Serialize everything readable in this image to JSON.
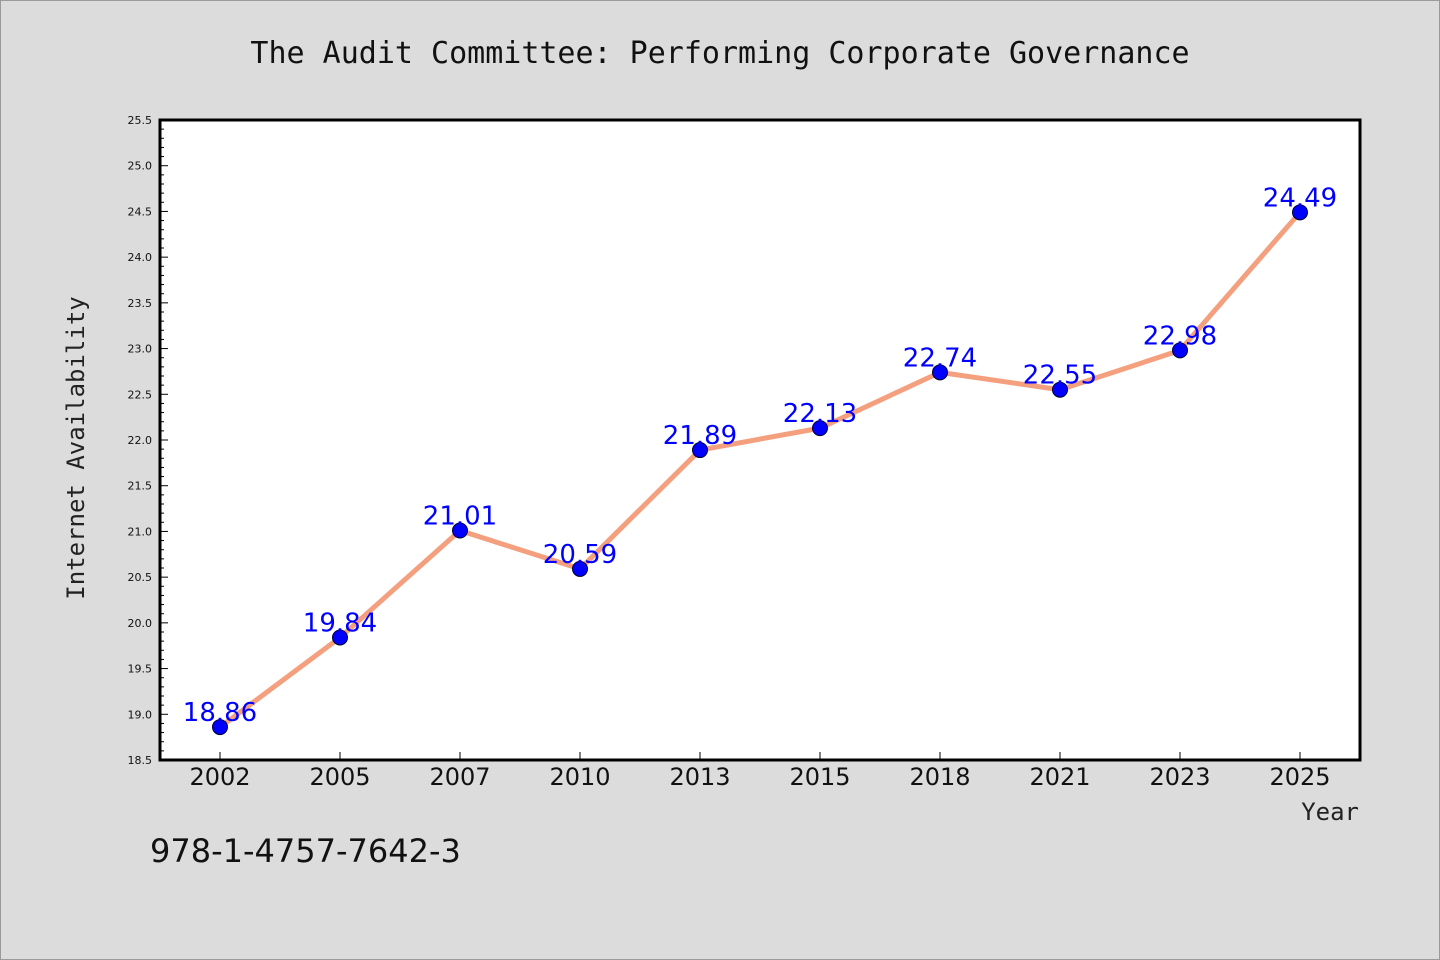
{
  "chart_data": {
    "type": "line",
    "title": "The Audit Committee: Performing Corporate Governance",
    "xlabel": "Year",
    "ylabel": "Internet Availability",
    "categories": [
      "2002",
      "2005",
      "2007",
      "2010",
      "2013",
      "2015",
      "2018",
      "2021",
      "2023",
      "2025"
    ],
    "series": [
      {
        "values": [
          18.86,
          19.84,
          21.01,
          20.59,
          21.89,
          22.13,
          22.74,
          22.55,
          22.98,
          24.49
        ]
      }
    ],
    "data_labels": [
      "18.86",
      "19.84",
      "21.01",
      "20.59",
      "21.89",
      "22.13",
      "22.74",
      "22.55",
      "22.98",
      "24.49"
    ],
    "ylim": [
      18.5,
      25.5
    ],
    "yticks": [
      "18.5",
      "19.0",
      "19.5",
      "20.0",
      "20.5",
      "21.0",
      "21.5",
      "22.0",
      "22.5",
      "23.0",
      "23.5",
      "24.0",
      "24.5",
      "25.0",
      "25.5"
    ],
    "grid": false,
    "line_color": "#f4a07e",
    "marker_color": "#0000ff",
    "label_color": "#0000ff"
  },
  "footer": {
    "isbn": "978-1-4757-7642-3"
  },
  "colors": {
    "background": "#dcdcdc",
    "plot_background": "#ffffff"
  }
}
